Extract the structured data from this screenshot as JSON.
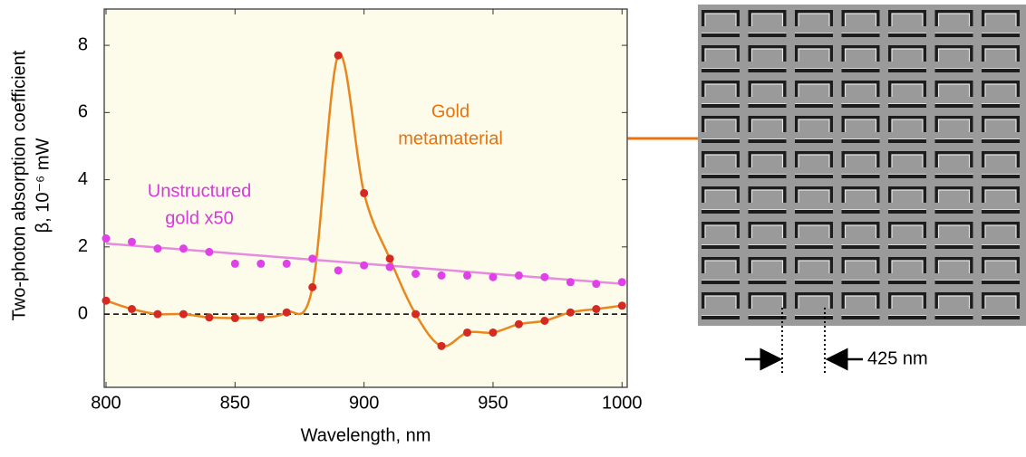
{
  "chart_data": {
    "type": "line",
    "x_label": "Wavelength, nm",
    "y_label": [
      "Two-photon absorption coefficient",
      "β, 10⁻⁶ mW"
    ],
    "xlim": [
      799.3,
      1002
    ],
    "ylim": [
      -2.18,
      9.08
    ],
    "xticks": [
      800,
      850,
      900,
      950,
      1000
    ],
    "yticks": [
      0,
      2,
      4,
      6,
      8
    ],
    "hline": 0,
    "series": [
      {
        "color": "#d42a22",
        "line_color": "#e8871e",
        "smooth": true,
        "x": [
          800,
          810,
          820,
          830,
          840,
          850,
          860,
          870,
          880,
          890,
          900,
          910,
          920,
          930,
          940,
          950,
          960,
          970,
          980,
          990,
          1000
        ],
        "values": [
          0.4,
          0.15,
          0,
          0,
          -0.1,
          -0.12,
          -0.1,
          0.05,
          0.8,
          7.7,
          3.6,
          1.65,
          0,
          -0.95,
          -0.55,
          -0.55,
          -0.3,
          -0.2,
          0.05,
          0.15,
          0.25
        ]
      },
      {
        "color": "#e040e8",
        "line_color": "#e58ce0",
        "smooth": false,
        "x": [
          800,
          810,
          820,
          830,
          840,
          850,
          860,
          870,
          880,
          890,
          900,
          910,
          920,
          930,
          940,
          950,
          960,
          970,
          980,
          990,
          1000
        ],
        "values": [
          2.25,
          2.15,
          1.95,
          1.95,
          1.85,
          1.5,
          1.5,
          1.5,
          1.65,
          1.3,
          1.45,
          1.4,
          1.2,
          1.15,
          1.15,
          1.1,
          1.15,
          1.1,
          0.95,
          0.9,
          0.95
        ],
        "fit": {
          "x": [
            800,
            1000
          ],
          "values": [
            2.1,
            0.9
          ]
        }
      }
    ],
    "annotations": [
      {
        "lines": [
          "Gold",
          "metamaterial"
        ],
        "color": "#e8730e"
      },
      {
        "lines": [
          "Unstructured",
          "gold x50"
        ],
        "color": "#d63ad8"
      }
    ],
    "scale_label": "425 nm"
  }
}
